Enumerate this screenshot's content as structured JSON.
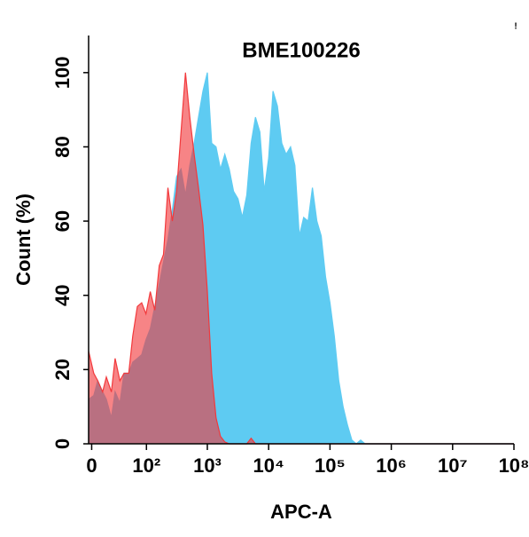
{
  "chart_data": {
    "type": "histogram-overlay",
    "title": "BME100226",
    "x_label": "APC-A",
    "y_label": "Count  (%)",
    "annotation": "!",
    "xscale": "biexponential",
    "x": [
      -3,
      2,
      6,
      11,
      15,
      21,
      26,
      33,
      40,
      49,
      58,
      70,
      83,
      98,
      116,
      138,
      163,
      192,
      227,
      268,
      315,
      372,
      439,
      517,
      609,
      718,
      847,
      999,
      1178,
      1388,
      1637,
      1929,
      2274,
      2681,
      3160,
      3725,
      4391,
      5176,
      6102,
      7193,
      8479,
      9995,
      11782,
      13889,
      16372,
      19300,
      22751,
      26819,
      31614,
      37267,
      43930,
      51786,
      61046,
      71961,
      84830,
      100000,
      117880,
      138960,
      163810,
      193100,
      227630,
      268330,
      316310,
      372870,
      100000000
    ],
    "series": [
      {
        "name": "blue",
        "color": "#5ecbf2",
        "values": [
          12,
          13,
          17,
          14,
          12,
          7,
          14,
          11,
          19,
          19,
          22,
          23,
          24,
          28,
          31,
          37,
          43,
          49,
          55,
          63,
          72,
          74,
          67,
          75,
          81,
          88,
          95,
          100,
          81,
          80,
          74,
          78,
          74,
          68,
          66,
          61,
          67,
          81,
          88,
          84,
          68,
          77,
          95,
          91,
          81,
          78,
          80,
          75,
          56,
          61,
          60,
          69,
          60,
          56,
          45,
          38,
          29,
          17,
          10,
          5,
          1,
          0,
          1,
          0,
          0
        ]
      },
      {
        "name": "red",
        "color": "#f2393c",
        "values": [
          25,
          19,
          17,
          14,
          18,
          14,
          23,
          17,
          19,
          19,
          29,
          37,
          38,
          35,
          41,
          36,
          48,
          51,
          69,
          60,
          68,
          84,
          100,
          88,
          78,
          69,
          59,
          41,
          19,
          7,
          2,
          0.5,
          0,
          0,
          0,
          0,
          0,
          1.5,
          0,
          0,
          0,
          0,
          0,
          0,
          0,
          0,
          0,
          0,
          0,
          0,
          0,
          0,
          0,
          0,
          0,
          0,
          0,
          0,
          0,
          0,
          0,
          0,
          0,
          0,
          0
        ]
      }
    ],
    "xlim": [
      -3,
      100000000
    ],
    "xticks": [
      0,
      {
        "value": 100,
        "label": "10²"
      },
      {
        "value": 1000,
        "label": "10³"
      },
      {
        "value": 10000,
        "label": "10⁴"
      },
      {
        "value": 100000,
        "label": "10⁵"
      },
      {
        "value": 1000000,
        "label": "10⁶"
      },
      {
        "value": 10000000,
        "label": "10⁷"
      },
      {
        "value": 100000000,
        "label": "10⁸"
      }
    ],
    "ylim": [
      0,
      110
    ],
    "yticks": [
      0,
      20,
      40,
      60,
      80,
      100
    ]
  }
}
